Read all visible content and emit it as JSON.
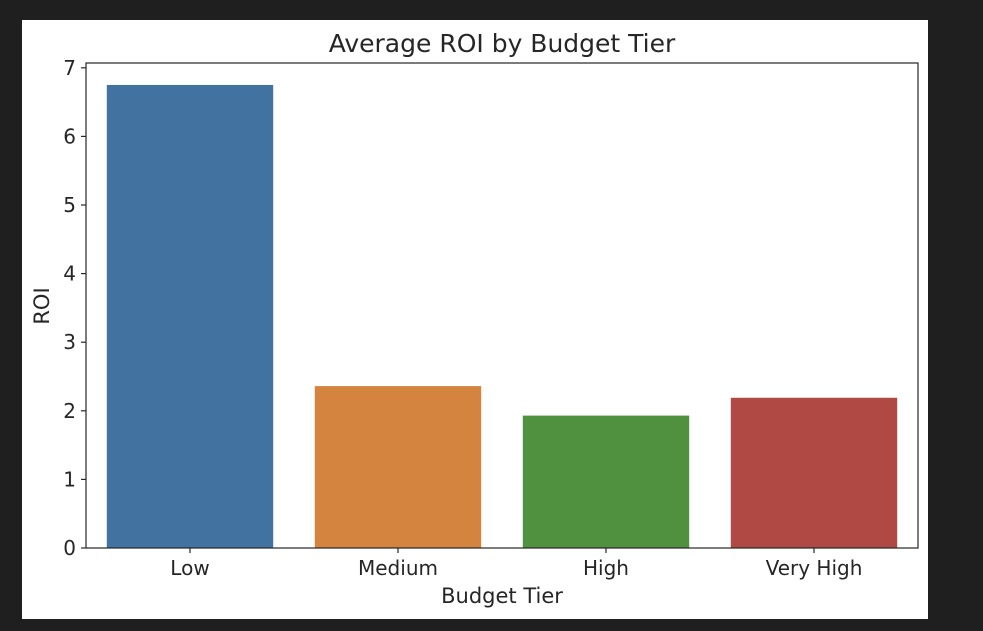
{
  "chart_data": {
    "type": "bar",
    "title": "Average ROI by Budget Tier",
    "xlabel": "Budget Tier",
    "ylabel": "ROI",
    "categories": [
      "Low",
      "Medium",
      "High",
      "Very High"
    ],
    "values": [
      6.75,
      2.36,
      1.93,
      2.19
    ],
    "colors": [
      "#4272a0",
      "#d4843f",
      "#50913f",
      "#b04943"
    ],
    "ylim": [
      0,
      7.07
    ],
    "yticks": [
      "0",
      "1",
      "2",
      "3",
      "4",
      "5",
      "6",
      "7"
    ],
    "grid": false,
    "legend": "none"
  }
}
